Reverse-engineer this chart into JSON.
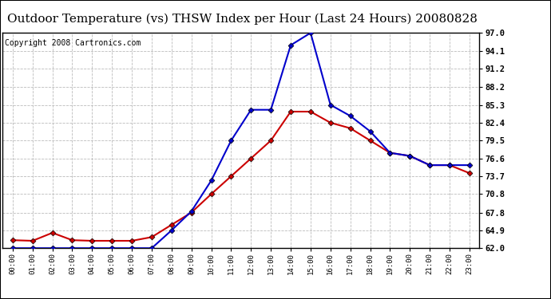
{
  "title": "Outdoor Temperature (vs) THSW Index per Hour (Last 24 Hours) 20080828",
  "copyright": "Copyright 2008 Cartronics.com",
  "hours": [
    0,
    1,
    2,
    3,
    4,
    5,
    6,
    7,
    8,
    9,
    10,
    11,
    12,
    13,
    14,
    15,
    16,
    17,
    18,
    19,
    20,
    21,
    22,
    23
  ],
  "temp": [
    63.3,
    63.2,
    64.5,
    63.3,
    63.2,
    63.2,
    63.2,
    63.8,
    65.8,
    67.8,
    70.8,
    73.7,
    76.6,
    79.5,
    84.2,
    84.2,
    82.4,
    81.5,
    79.5,
    77.5,
    77.0,
    75.5,
    75.5,
    74.2
  ],
  "thsw": [
    62.0,
    62.0,
    62.0,
    62.0,
    62.0,
    62.0,
    62.0,
    62.0,
    64.9,
    68.0,
    73.0,
    79.5,
    84.5,
    84.5,
    95.0,
    97.0,
    85.3,
    83.5,
    81.0,
    77.5,
    77.0,
    75.5,
    75.5,
    75.5
  ],
  "temp_color": "#cc0000",
  "thsw_color": "#0000cc",
  "ylim": [
    62.0,
    97.0
  ],
  "yticks": [
    62.0,
    64.9,
    67.8,
    70.8,
    73.7,
    76.6,
    79.5,
    82.4,
    85.3,
    88.2,
    91.2,
    94.1,
    97.0
  ],
  "bg_color": "#ffffff",
  "grid_color": "#bbbbbb",
  "title_fontsize": 11,
  "copyright_fontsize": 7,
  "marker_size": 3.5,
  "linewidth": 1.5
}
